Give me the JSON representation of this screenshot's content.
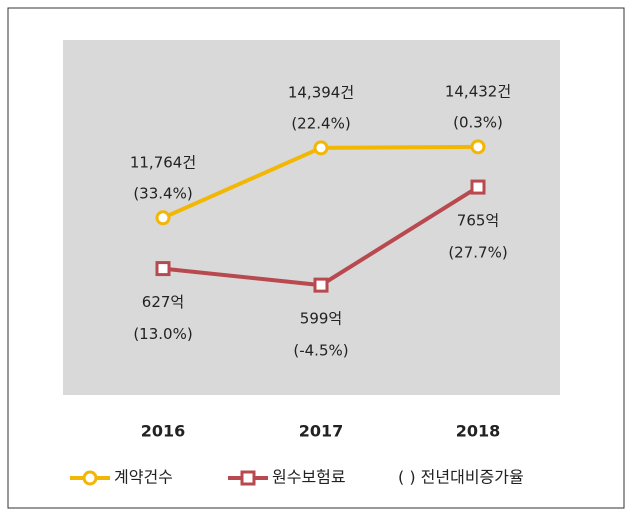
{
  "chart_data": {
    "type": "line",
    "categories": [
      "2016",
      "2017",
      "2018"
    ],
    "series": [
      {
        "name": "계약건수",
        "color": "#f2b705",
        "marker": "circle",
        "values": [
          11764,
          14394,
          14432
        ],
        "value_labels": [
          "11,764건",
          "14,394건",
          "14,432건"
        ],
        "growth_labels": [
          "(33.4%)",
          "(22.4%)",
          "(0.3%)"
        ]
      },
      {
        "name": "원수보험료",
        "color": "#b84a4f",
        "marker": "square",
        "axis": "y2",
        "values": [
          627,
          599,
          765
        ],
        "value_labels": [
          "627억",
          "599억",
          "765억"
        ],
        "growth_labels": [
          "(13.0%)",
          "(-4.5%)",
          "(27.7%)"
        ]
      }
    ],
    "ylim": [
      5100,
      18450
    ],
    "y2lim": [
      413,
      1014
    ],
    "legend_note": "( ) 전년대비증가율",
    "legend": "bottom"
  }
}
